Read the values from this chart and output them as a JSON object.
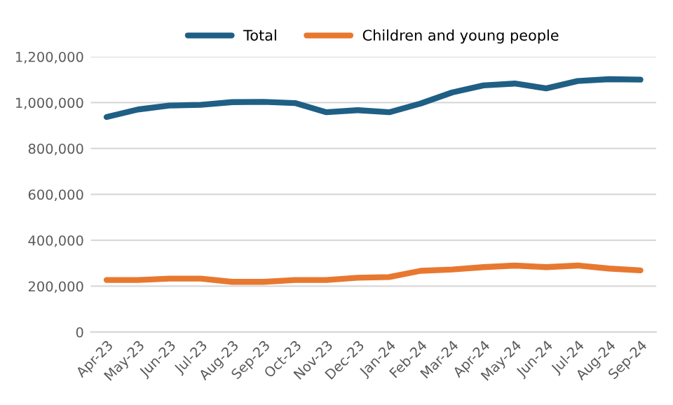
{
  "chart_data": {
    "type": "line",
    "categories": [
      "Apr-23",
      "May-23",
      "Jun-23",
      "Jul-23",
      "Aug-23",
      "Sep-23",
      "Oct-23",
      "Nov-23",
      "Dec-23",
      "Jan-24",
      "Feb-24",
      "Mar-24",
      "Apr-24",
      "May-24",
      "Jun-24",
      "Jul-24",
      "Aug-24",
      "Sep-24"
    ],
    "series": [
      {
        "name": "Total",
        "color": "#1f5f85",
        "values": [
          937000,
          970000,
          987000,
          990000,
          1002000,
          1003000,
          998000,
          958000,
          967000,
          958000,
          996000,
          1044000,
          1075000,
          1083000,
          1062000,
          1094000,
          1102000,
          1100000
        ]
      },
      {
        "name": "Children and young people",
        "color": "#e8782f",
        "values": [
          227000,
          227000,
          233000,
          233000,
          219000,
          219000,
          227000,
          227000,
          237000,
          240000,
          267000,
          273000,
          283000,
          290000,
          283000,
          290000,
          277000,
          269000
        ]
      }
    ],
    "ylim": [
      0,
      1200000
    ],
    "yticks": [
      {
        "value": 0,
        "label": "0"
      },
      {
        "value": 200000,
        "label": "200,000"
      },
      {
        "value": 400000,
        "label": "400,000"
      },
      {
        "value": 600000,
        "label": "600,000"
      },
      {
        "value": 800000,
        "label": "800,000"
      },
      {
        "value": 1000000,
        "label": "1,000,000"
      },
      {
        "value": 1200000,
        "label": "1,200,000"
      }
    ],
    "grid": "y",
    "legend": "top",
    "marker": "none",
    "line_style": "solid"
  }
}
